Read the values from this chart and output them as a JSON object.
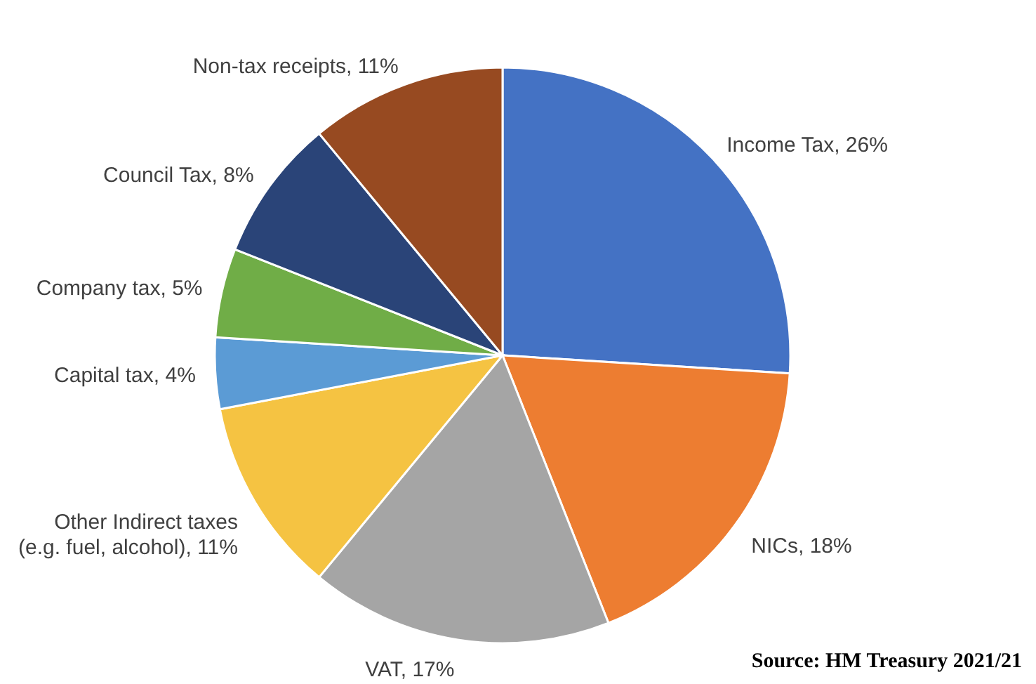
{
  "chart_data": {
    "type": "pie",
    "categories": [
      "Income Tax",
      "NICs",
      "VAT",
      "Other Indirect taxes (e.g. fuel, alcohol)",
      "Capital tax",
      "Company tax",
      "Council Tax",
      "Non-tax receipts"
    ],
    "values": [
      26,
      18,
      17,
      11,
      4,
      5,
      8,
      11
    ],
    "value_labels": [
      "26%",
      "18%",
      "17%",
      "11%",
      "4%",
      "5%",
      "8%",
      "11%"
    ],
    "colors": [
      "#4472c4",
      "#ed7d31",
      "#a5a5a5",
      "#f5c342",
      "#5b9bd5",
      "#70ad47",
      "#2a4478",
      "#974a21"
    ],
    "annotations": [
      "Source: HM Treasury 2021/21"
    ]
  }
}
